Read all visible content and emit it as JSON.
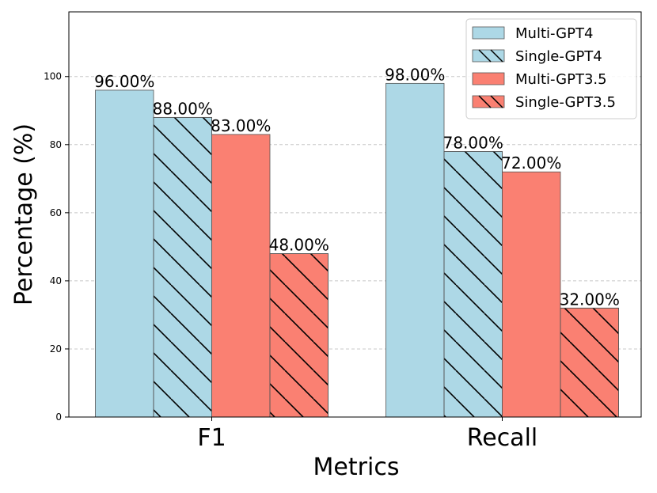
{
  "chart_data": {
    "type": "bar",
    "title": "",
    "xlabel": "Metrics",
    "ylabel": "Percentage (%)",
    "ylim": [
      0,
      119
    ],
    "yticks": [
      0,
      20,
      40,
      60,
      80,
      100
    ],
    "grid": "y-dashed",
    "legend_position": "top-right",
    "categories": [
      "F1",
      "Recall"
    ],
    "series": [
      {
        "name": "Multi-GPT4",
        "values": [
          96,
          98
        ],
        "value_labels": [
          "96.00%",
          "98.00%"
        ],
        "color": "#add8e6",
        "hatch": false
      },
      {
        "name": "Single-GPT4",
        "values": [
          88,
          78
        ],
        "value_labels": [
          "88.00%",
          "78.00%"
        ],
        "color": "#add8e6",
        "hatch": true
      },
      {
        "name": "Multi-GPT3.5",
        "values": [
          83,
          72
        ],
        "value_labels": [
          "83.00%",
          "72.00%"
        ],
        "color": "#fa8072",
        "hatch": false
      },
      {
        "name": "Single-GPT3.5",
        "values": [
          48,
          32
        ],
        "value_labels": [
          "48.00%",
          "32.00%"
        ],
        "color": "#fa8072",
        "hatch": true
      }
    ]
  }
}
